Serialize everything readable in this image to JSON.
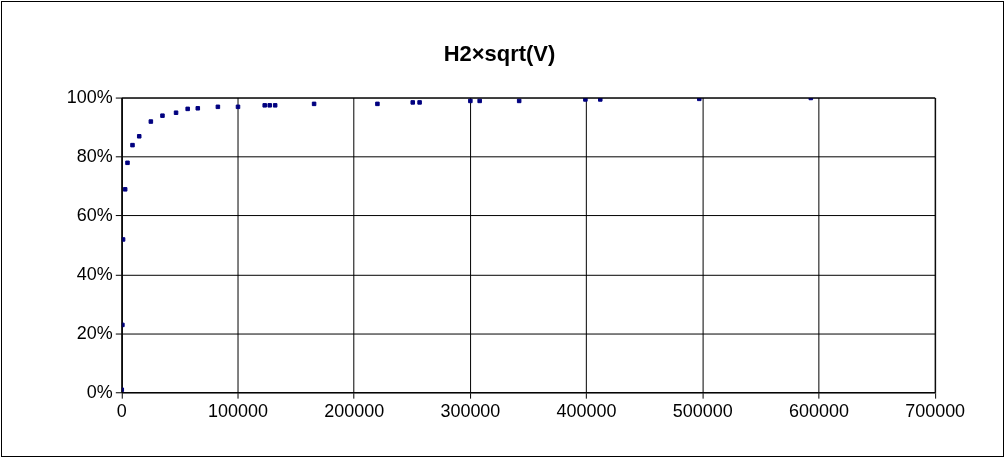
{
  "chart_data": {
    "type": "scatter",
    "title": "H2×sqrt(V)",
    "x": [
      0,
      500,
      1100,
      2900,
      4900,
      9200,
      15000,
      25000,
      35000,
      46700,
      56700,
      65400,
      82700,
      100000,
      123000,
      127300,
      132000,
      165500,
      220000,
      250400,
      256300,
      300000,
      308000,
      342000,
      399000,
      411800,
      497000,
      593000
    ],
    "series": [
      {
        "color": "#000080",
        "values": [
          1,
          23,
          52,
          69,
          78,
          84,
          87,
          92,
          94,
          95,
          96.3,
          96.5,
          97,
          97,
          97.5,
          97.5,
          97.5,
          98,
          98,
          98.5,
          98.5,
          99,
          99,
          99,
          99.5,
          99.5,
          99.7,
          100
        ]
      }
    ],
    "xlim": [
      0,
      700000
    ],
    "xticks": [
      0,
      100000,
      200000,
      300000,
      400000,
      500000,
      600000,
      700000
    ],
    "ylim": [
      0,
      100
    ],
    "yticks": [
      {
        "value": 0,
        "label": "0%"
      },
      {
        "value": 20,
        "label": "20%"
      },
      {
        "value": 40,
        "label": "40%"
      },
      {
        "value": 60,
        "label": "60%"
      },
      {
        "value": 80,
        "label": "80%"
      },
      {
        "value": 100,
        "label": "100%"
      }
    ],
    "grid": true,
    "legend": false,
    "marker": "square"
  }
}
